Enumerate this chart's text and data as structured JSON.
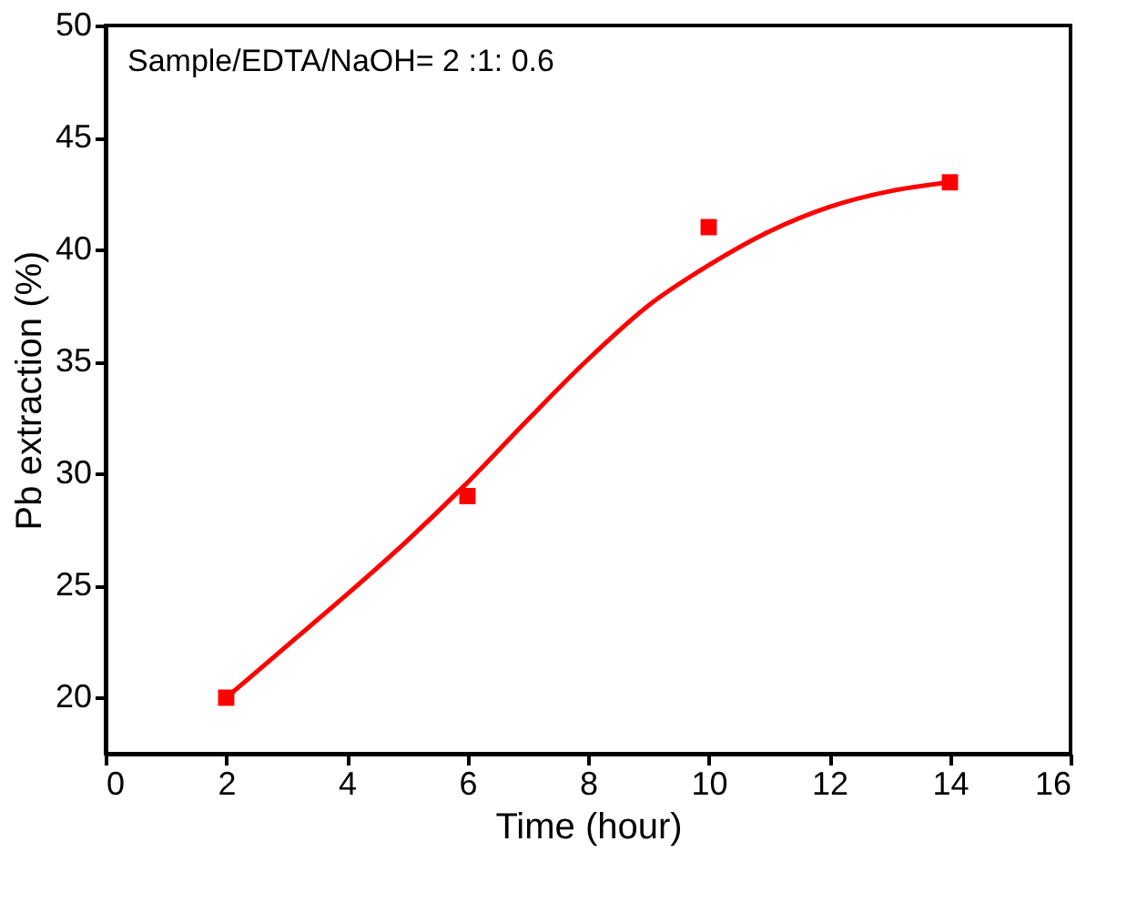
{
  "chart_data": {
    "type": "scatter",
    "xlabel": "Time (hour)",
    "ylabel": "Pb extraction (%)",
    "annotations": [
      "Sample/EDTA/NaOH= 2 :1: 0.6"
    ],
    "xlim": [
      0,
      16
    ],
    "xticks": [
      0,
      2,
      4,
      6,
      8,
      10,
      12,
      14,
      16
    ],
    "ylim": [
      17.5,
      50
    ],
    "yticks": [
      20,
      25,
      30,
      35,
      40,
      45,
      50
    ],
    "grid": false,
    "marker": "square",
    "series": [
      {
        "color": "#ff0000",
        "x": [
          2,
          6,
          10,
          14
        ],
        "values": [
          20,
          29,
          41,
          43
        ]
      },
      {
        "type": "line",
        "color": "#ff0000",
        "line_style": "solid",
        "marker": "none",
        "x": [
          2,
          3,
          4,
          5,
          6,
          7,
          8,
          9,
          10,
          11,
          12,
          13,
          14
        ],
        "values": [
          20,
          22.3,
          24.6,
          27,
          29.6,
          32.4,
          35.1,
          37.5,
          39.3,
          40.8,
          41.9,
          42.6,
          43
        ]
      }
    ]
  }
}
